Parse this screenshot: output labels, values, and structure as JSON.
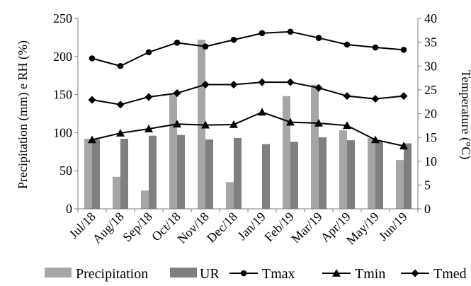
{
  "chart_data": {
    "type": "bar",
    "categories": [
      "Jul/18",
      "Aug/18",
      "Sep/18",
      "Oct/18",
      "Nov/18",
      "Dec/18",
      "Jan/19",
      "Feb/19",
      "Mar/19",
      "Apr/19",
      "May/19",
      "Jun/19"
    ],
    "bar_series": [
      {
        "name": "Precipitation",
        "axis": "left",
        "color": "#a6a6a6",
        "values": [
          92,
          42,
          24,
          150,
          222,
          35,
          0,
          148,
          163,
          103,
          93,
          64
        ]
      },
      {
        "name": "UR",
        "axis": "left",
        "color": "#7f7f7f",
        "values": [
          91,
          92,
          96,
          97,
          91,
          93,
          85,
          88,
          94,
          90,
          89,
          86
        ]
      }
    ],
    "line_series": [
      {
        "name": "Tmax",
        "axis": "right",
        "marker": "circle",
        "values": [
          31.6,
          30.0,
          32.9,
          34.9,
          34.1,
          35.5,
          36.9,
          37.2,
          35.9,
          34.5,
          33.9,
          33.4
        ]
      },
      {
        "name": "Tmin",
        "axis": "right",
        "marker": "triangle",
        "values": [
          14.5,
          15.9,
          16.8,
          17.8,
          17.6,
          17.7,
          20.3,
          18.2,
          18.0,
          17.5,
          14.5,
          13.2
        ]
      },
      {
        "name": "Tmed",
        "axis": "right",
        "marker": "diamond",
        "values": [
          22.9,
          21.9,
          23.5,
          24.3,
          26.1,
          26.1,
          26.6,
          26.6,
          25.4,
          23.7,
          23.1,
          23.7
        ]
      }
    ],
    "ylabel": "Precipitation (mm) e RH (%)",
    "y2label": "Temperature (°C)",
    "ylim": [
      0,
      250
    ],
    "yticks": [
      0,
      50,
      100,
      150,
      200,
      250
    ],
    "y2lim": [
      0,
      40
    ],
    "y2ticks": [
      0,
      5,
      10,
      15,
      20,
      25,
      30,
      35,
      40
    ],
    "grid": false,
    "legend_position": "bottom",
    "legend": [
      "Precipitation",
      "UR",
      "Tmax",
      "Tmin",
      "Tmed"
    ]
  }
}
